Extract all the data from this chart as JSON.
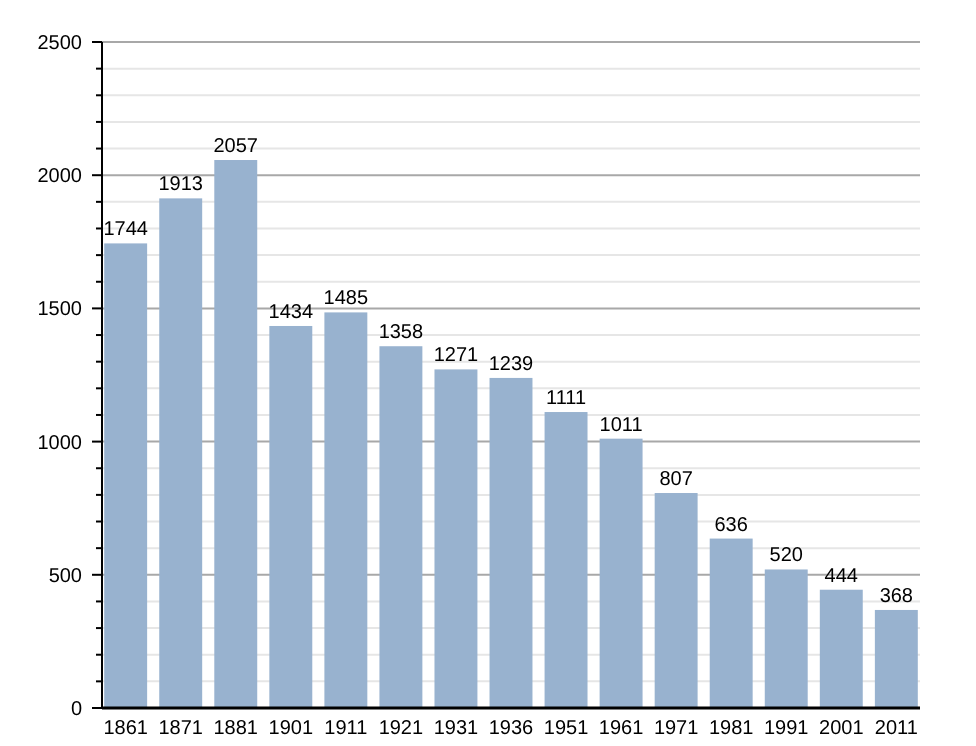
{
  "chart_data": {
    "type": "bar",
    "categories": [
      "1861",
      "1871",
      "1881",
      "1901",
      "1911",
      "1921",
      "1931",
      "1936",
      "1951",
      "1961",
      "1971",
      "1981",
      "1991",
      "2001",
      "2011"
    ],
    "values": [
      1744,
      1913,
      2057,
      1434,
      1485,
      1358,
      1271,
      1239,
      1111,
      1011,
      807,
      636,
      520,
      444,
      368
    ],
    "color": "#98b2cf",
    "ylim": [
      0,
      2500
    ],
    "yticks": [
      0,
      {
        "value": 100,
        "label": null
      },
      {
        "value": 200,
        "label": null
      },
      {
        "value": 300,
        "label": null
      },
      {
        "value": 400,
        "label": null
      },
      500,
      {
        "value": 600,
        "label": null
      },
      {
        "value": 700,
        "label": null
      },
      {
        "value": 800,
        "label": null
      },
      {
        "value": 900,
        "label": null
      },
      1000,
      {
        "value": 1100,
        "label": null
      },
      {
        "value": 1200,
        "label": null
      },
      {
        "value": 1300,
        "label": null
      },
      {
        "value": 1400,
        "label": null
      },
      1500,
      {
        "value": 1600,
        "label": null
      },
      {
        "value": 1700,
        "label": null
      },
      {
        "value": 1800,
        "label": null
      },
      {
        "value": 1900,
        "label": null
      },
      2000,
      {
        "value": 2100,
        "label": null
      },
      {
        "value": 2200,
        "label": null
      },
      {
        "value": 2300,
        "label": null
      },
      {
        "value": 2400,
        "label": null
      },
      2500
    ],
    "grid": "y",
    "data_labels": true
  }
}
